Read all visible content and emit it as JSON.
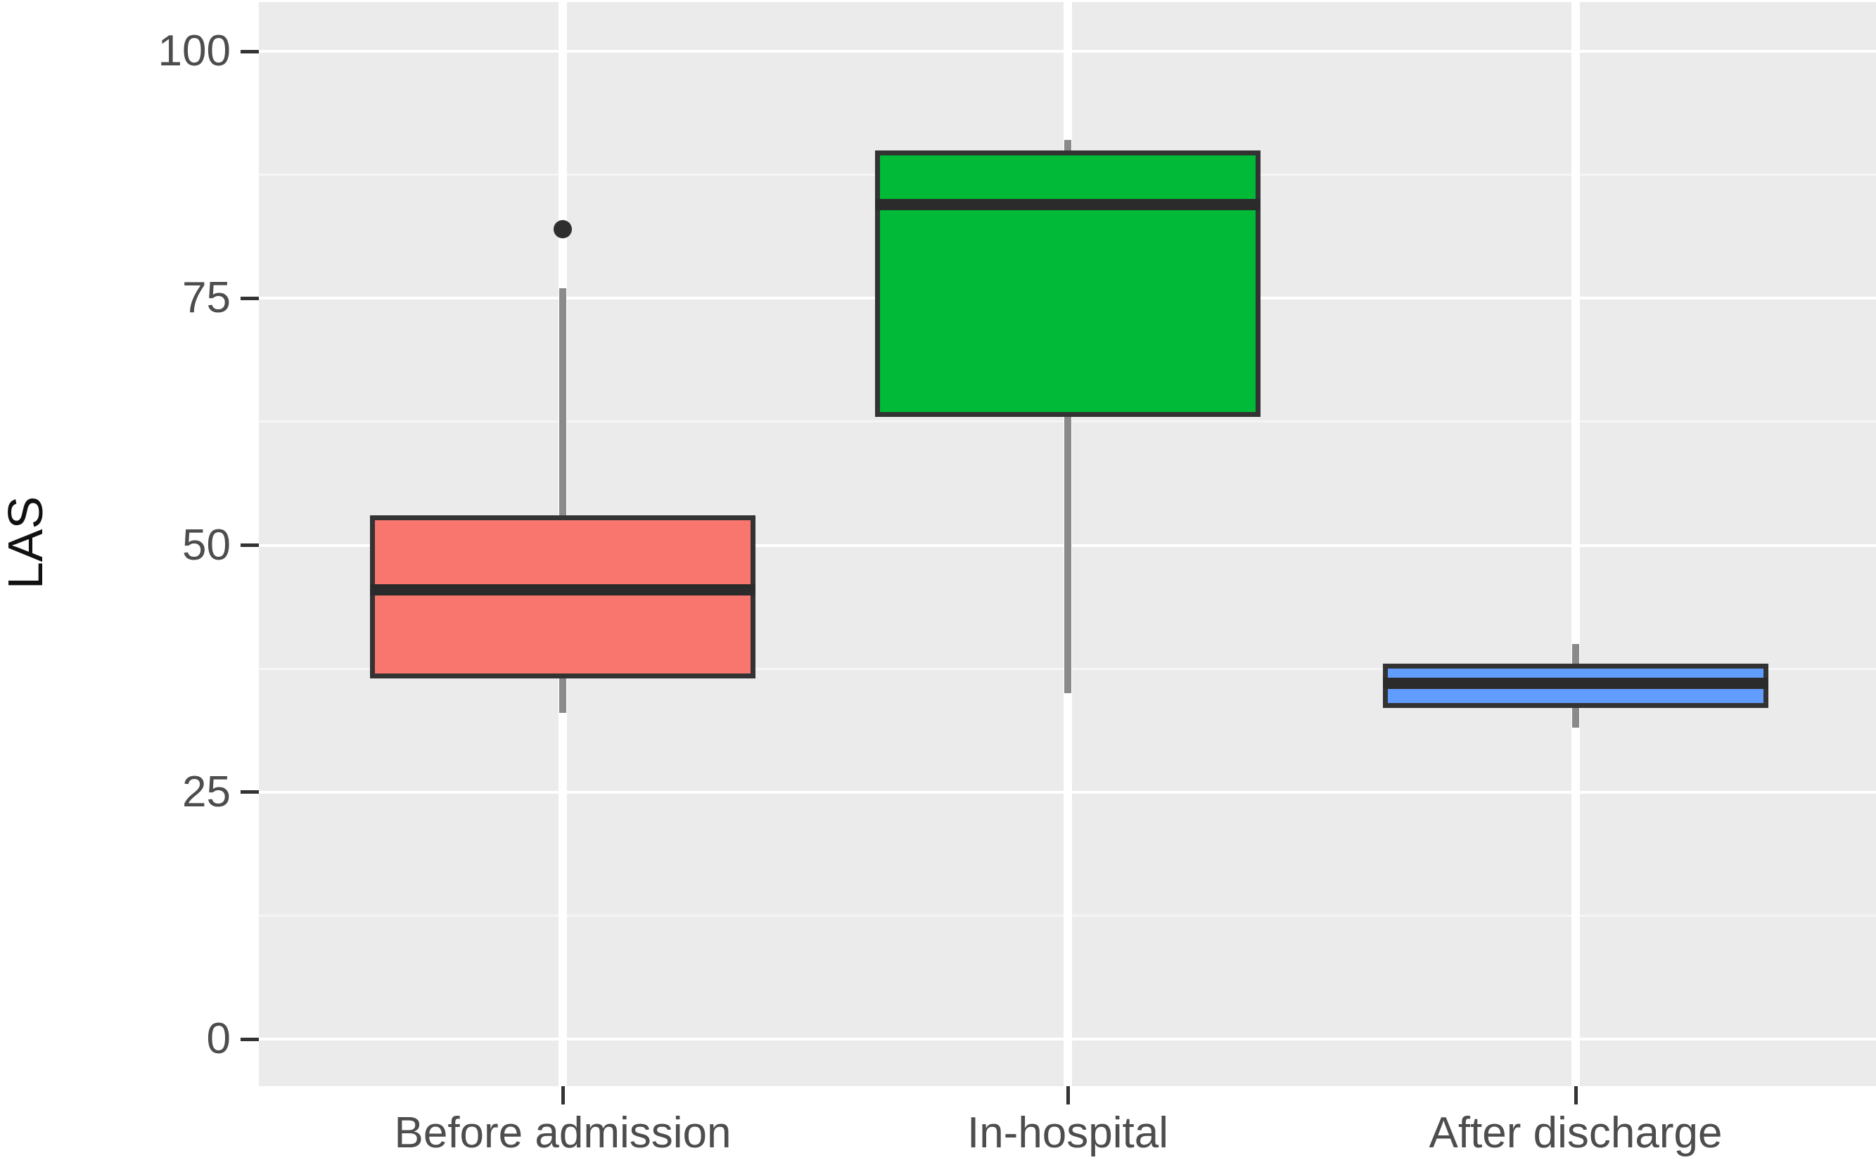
{
  "figure": {
    "background": "#ffffff",
    "panel_background": "#ebebeb",
    "grid_major_color": "#ffffff",
    "grid_minor_color": "#f5f5f5",
    "tick_mark_color": "#333333",
    "tick_label_color": "#4d4d4d",
    "axis_title_color": "#111111",
    "box_border_color": "#333333",
    "median_color": "#2b2b2b",
    "whisker_color": "#8a8a8a",
    "outlier_color": "#2e2e2e"
  },
  "axes": {
    "y": {
      "title": "LAS",
      "tick_labels": [
        "0",
        "25",
        "50",
        "75",
        "100"
      ],
      "tick_values": [
        0,
        25,
        50,
        75,
        100
      ],
      "minor_values": [
        12.5,
        37.5,
        62.5,
        87.5
      ]
    },
    "x": {
      "title": "",
      "categories": [
        "Before admission",
        "In-hospital",
        "After discharge"
      ]
    }
  },
  "chart_data": {
    "type": "boxplot",
    "title": "",
    "xlabel": "",
    "ylabel": "LAS",
    "ylim": [
      -5,
      105
    ],
    "y_ticks": [
      0,
      25,
      50,
      75,
      100
    ],
    "grid": "on",
    "legend": "none",
    "categories": [
      "Before admission",
      "In-hospital",
      "After discharge"
    ],
    "series": [
      {
        "name": "Before admission",
        "color": "#F8766D",
        "whisker_low": 33,
        "q1": 36.5,
        "median": 45.5,
        "q3": 53,
        "whisker_high": 76,
        "outliers": [
          82
        ]
      },
      {
        "name": "In-hospital",
        "color": "#00BA38",
        "whisker_low": 35,
        "q1": 63,
        "median": 84.5,
        "q3": 90,
        "whisker_high": 91,
        "outliers": []
      },
      {
        "name": "After discharge",
        "color": "#619CFF",
        "whisker_low": 31.5,
        "q1": 33.5,
        "median": 36,
        "q3": 38,
        "whisker_high": 40,
        "outliers": []
      }
    ]
  }
}
